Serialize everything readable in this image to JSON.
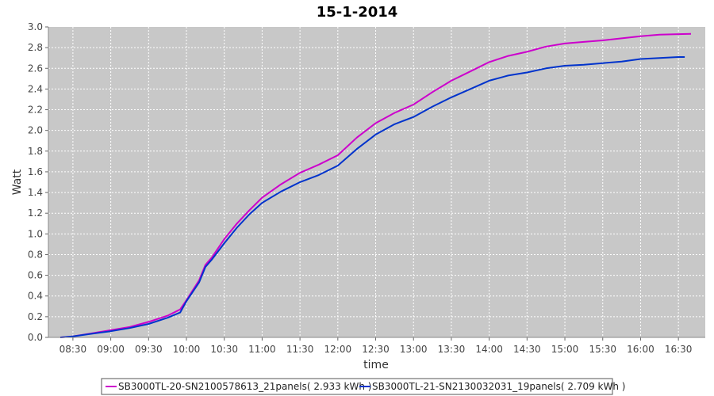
{
  "chart_data": {
    "type": "line",
    "title": "15-1-2014",
    "xlabel": "time",
    "ylabel": "Watt",
    "ylim": [
      0,
      3.0
    ],
    "y_ticks": [
      "0.0",
      "0.2",
      "0.4",
      "0.6",
      "0.8",
      "1.0",
      "1.2",
      "1.4",
      "1.6",
      "1.8",
      "2.0",
      "2.2",
      "2.4",
      "2.6",
      "2.8",
      "3.0"
    ],
    "x_ticks": [
      "08:30",
      "09:00",
      "09:30",
      "10:00",
      "10:30",
      "11:00",
      "11:30",
      "12:00",
      "12:30",
      "13:00",
      "13:30",
      "14:00",
      "14:30",
      "15:00",
      "15:30",
      "16:00",
      "16:30"
    ],
    "xlim": [
      "08:20",
      "16:45"
    ],
    "grid": true,
    "legend_position": "bottom",
    "series": [
      {
        "name": "SB3000TL-20-SN2100578613_21panels( 2.933 kWh )",
        "color": "#cc00cc",
        "x": [
          "08:20",
          "08:30",
          "08:45",
          "09:00",
          "09:15",
          "09:30",
          "09:45",
          "09:55",
          "10:00",
          "10:10",
          "10:15",
          "10:20",
          "10:30",
          "10:40",
          "10:50",
          "11:00",
          "11:15",
          "11:30",
          "11:45",
          "12:00",
          "12:15",
          "12:30",
          "12:45",
          "13:00",
          "13:15",
          "13:30",
          "13:45",
          "14:00",
          "14:15",
          "14:30",
          "14:45",
          "15:00",
          "15:15",
          "15:30",
          "15:45",
          "16:00",
          "16:15",
          "16:30",
          "16:40"
        ],
        "y": [
          0.0,
          0.01,
          0.04,
          0.07,
          0.1,
          0.15,
          0.21,
          0.27,
          0.36,
          0.55,
          0.7,
          0.77,
          0.95,
          1.1,
          1.23,
          1.35,
          1.48,
          1.59,
          1.67,
          1.76,
          1.93,
          2.07,
          2.17,
          2.25,
          2.37,
          2.48,
          2.57,
          2.66,
          2.72,
          2.76,
          2.81,
          2.84,
          2.855,
          2.87,
          2.89,
          2.91,
          2.925,
          2.93,
          2.933
        ]
      },
      {
        "name": "SB3000TL-21-SN2130032031_19panels( 2.709 kWh )",
        "color": "#0033cc",
        "x": [
          "08:20",
          "08:30",
          "08:45",
          "09:00",
          "09:15",
          "09:30",
          "09:45",
          "09:55",
          "10:00",
          "10:10",
          "10:15",
          "10:20",
          "10:30",
          "10:40",
          "10:50",
          "11:00",
          "11:15",
          "11:30",
          "11:45",
          "12:00",
          "12:15",
          "12:30",
          "12:45",
          "13:00",
          "13:15",
          "13:30",
          "13:45",
          "14:00",
          "14:15",
          "14:30",
          "14:45",
          "15:00",
          "15:15",
          "15:30",
          "15:45",
          "16:00",
          "16:15",
          "16:30",
          "16:35"
        ],
        "y": [
          0.0,
          0.01,
          0.035,
          0.06,
          0.09,
          0.13,
          0.19,
          0.24,
          0.35,
          0.53,
          0.68,
          0.75,
          0.91,
          1.06,
          1.19,
          1.3,
          1.41,
          1.5,
          1.57,
          1.66,
          1.82,
          1.96,
          2.06,
          2.13,
          2.23,
          2.32,
          2.4,
          2.48,
          2.53,
          2.56,
          2.6,
          2.625,
          2.635,
          2.65,
          2.665,
          2.69,
          2.7,
          2.709,
          2.709
        ]
      }
    ]
  }
}
